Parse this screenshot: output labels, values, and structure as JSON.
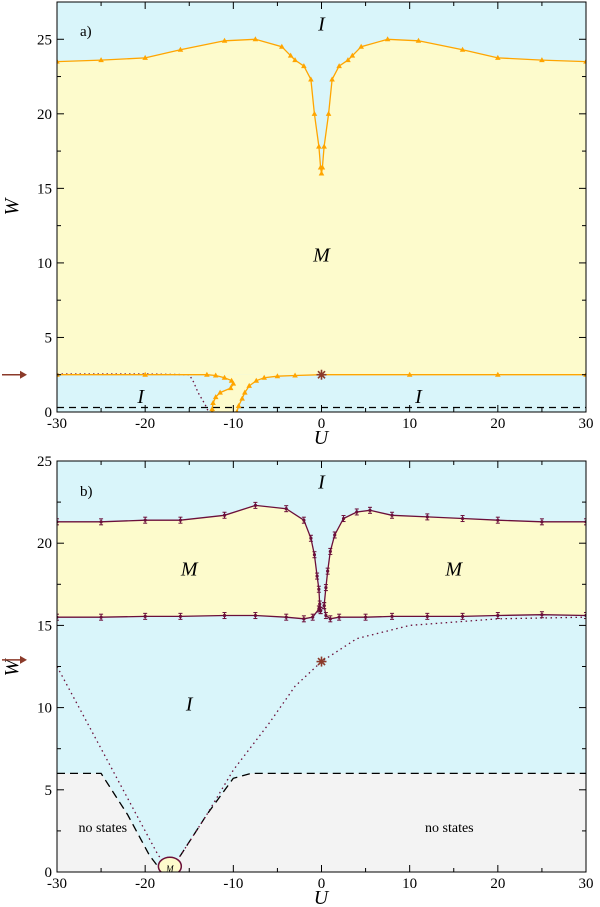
{
  "colors": {
    "insulator": "#d9f5fa",
    "metal": "#fdfbcc",
    "no_states": "#f3f3f3",
    "line_a": "#ffa500",
    "line_b": "#6b0f3a",
    "arrow": "#8b3a2a"
  },
  "chart_data": [
    {
      "type": "line",
      "panel_label": "a)",
      "xlabel": "U",
      "ylabel": "W",
      "xlim": [
        -30,
        30
      ],
      "ylim": [
        0,
        27.5
      ],
      "xticks": [
        -30,
        -20,
        -10,
        0,
        10,
        20,
        30
      ],
      "yticks": [
        0,
        5,
        10,
        15,
        20,
        25
      ],
      "arrow_w": 2.5,
      "star": {
        "x": 0,
        "y": 2.5
      },
      "regions": [
        {
          "label": "I",
          "x": 0,
          "y": 26
        },
        {
          "label": "M",
          "x": 0,
          "y": 10.5
        },
        {
          "label": "I",
          "x": -20.5,
          "y": 1.0
        },
        {
          "label": "I",
          "x": 11,
          "y": 1.0
        }
      ],
      "upper_boundary": [
        [
          -30,
          23.5
        ],
        [
          -25,
          23.6
        ],
        [
          -20,
          23.75
        ],
        [
          -16,
          24.3
        ],
        [
          -11,
          24.9
        ],
        [
          -7.5,
          25.0
        ],
        [
          -4.5,
          24.5
        ],
        [
          -3.5,
          23.9
        ],
        [
          -3,
          23.6
        ],
        [
          -2,
          23.2
        ],
        [
          -1.2,
          22.3
        ],
        [
          -0.8,
          20.0
        ],
        [
          -0.3,
          17.8
        ],
        [
          -0.1,
          16.4
        ],
        [
          0,
          16.0
        ],
        [
          0.1,
          16.4
        ],
        [
          0.3,
          17.8
        ],
        [
          0.8,
          20.0
        ],
        [
          1.2,
          22.3
        ],
        [
          2,
          23.2
        ],
        [
          3,
          23.6
        ],
        [
          3.5,
          23.9
        ],
        [
          4.5,
          24.5
        ],
        [
          7.5,
          25.0
        ],
        [
          11,
          24.9
        ],
        [
          16,
          24.3
        ],
        [
          20,
          23.75
        ],
        [
          25,
          23.6
        ],
        [
          30,
          23.5
        ]
      ],
      "lower_boundary": [
        [
          -30,
          2.5
        ],
        [
          -20,
          2.5
        ],
        [
          -13,
          2.5
        ],
        [
          -12,
          2.45
        ],
        [
          -11,
          2.3
        ],
        [
          -10.2,
          2.1
        ],
        [
          -10,
          1.9
        ],
        [
          -10.3,
          1.6
        ],
        [
          -11.5,
          1.3
        ],
        [
          -12.0,
          1.0
        ],
        [
          -12.3,
          0.6
        ],
        [
          -12.4,
          0.2
        ],
        [
          -12.4,
          0
        ]
      ],
      "lower_boundary_right": [
        [
          -9.6,
          0
        ],
        [
          -9.4,
          0.4
        ],
        [
          -9.0,
          0.9
        ],
        [
          -8.7,
          1.3
        ],
        [
          -8.2,
          1.75
        ],
        [
          -7.4,
          2.1
        ],
        [
          -6.5,
          2.3
        ],
        [
          -5,
          2.4
        ],
        [
          -3,
          2.45
        ],
        [
          0,
          2.5
        ],
        [
          10,
          2.5
        ],
        [
          20,
          2.5
        ],
        [
          30,
          2.5
        ]
      ],
      "dotted": [
        [
          -30,
          2.55
        ],
        [
          -20,
          2.55
        ],
        [
          -15,
          2.5
        ],
        [
          -14.5,
          2.0
        ],
        [
          -14,
          1.3
        ],
        [
          -13.2,
          0.5
        ],
        [
          -12.8,
          0
        ]
      ],
      "dashed": [
        [
          -30,
          0.3
        ],
        [
          30,
          0.3
        ]
      ]
    },
    {
      "type": "line",
      "panel_label": "b)",
      "xlabel": "U",
      "ylabel": "W",
      "xlim": [
        -30,
        30
      ],
      "ylim": [
        0,
        25
      ],
      "xticks": [
        -30,
        -20,
        -10,
        0,
        10,
        20,
        30
      ],
      "yticks": [
        0,
        5,
        10,
        15,
        20,
        25
      ],
      "arrow_w": 12.9,
      "star": {
        "x": 0,
        "y": 12.8
      },
      "regions": [
        {
          "label": "I",
          "x": 0,
          "y": 23.7,
          "italic": true
        },
        {
          "label": "M",
          "x": -15,
          "y": 18.4,
          "italic": true
        },
        {
          "label": "M",
          "x": 15,
          "y": 18.4,
          "italic": true
        },
        {
          "label": "I",
          "x": -15,
          "y": 10.2,
          "italic": true
        },
        {
          "label": "no states",
          "x": -24.8,
          "y": 2.8,
          "italic": false
        },
        {
          "label": "no states",
          "x": 14.5,
          "y": 2.8,
          "italic": false
        },
        {
          "label": "M",
          "x": -17.2,
          "y": 0.35,
          "italic": true,
          "small": true
        }
      ],
      "upper_left": [
        [
          -30,
          21.3
        ],
        [
          -25,
          21.3
        ],
        [
          -20,
          21.4
        ],
        [
          -16,
          21.4
        ],
        [
          -11,
          21.7
        ],
        [
          -7.5,
          22.3
        ],
        [
          -4,
          22.1
        ],
        [
          -2,
          21.4
        ],
        [
          -1.2,
          20.3
        ],
        [
          -0.8,
          19.3
        ],
        [
          -0.5,
          18.0
        ],
        [
          -0.3,
          17.2
        ],
        [
          -0.2,
          16.3
        ],
        [
          -0.1,
          15.9
        ]
      ],
      "lower_left": [
        [
          -30,
          15.5
        ],
        [
          -25,
          15.5
        ],
        [
          -20,
          15.55
        ],
        [
          -16,
          15.55
        ],
        [
          -11,
          15.6
        ],
        [
          -7.5,
          15.6
        ],
        [
          -4,
          15.5
        ],
        [
          -2,
          15.4
        ],
        [
          -1,
          15.5
        ],
        [
          -0.3,
          16.0
        ],
        [
          -0.1,
          15.9
        ]
      ],
      "upper_right": [
        [
          0.3,
          16.2
        ],
        [
          0.5,
          17.3
        ],
        [
          0.7,
          18.3
        ],
        [
          1,
          19.5
        ],
        [
          1.5,
          20.5
        ],
        [
          2.5,
          21.5
        ],
        [
          4,
          21.9
        ],
        [
          5.5,
          22.0
        ],
        [
          8,
          21.7
        ],
        [
          12,
          21.6
        ],
        [
          16,
          21.5
        ],
        [
          20,
          21.4
        ],
        [
          25,
          21.3
        ],
        [
          30,
          21.3
        ]
      ],
      "lower_right": [
        [
          0.3,
          16.2
        ],
        [
          0.5,
          15.6
        ],
        [
          1,
          15.4
        ],
        [
          2,
          15.5
        ],
        [
          5,
          15.5
        ],
        [
          8,
          15.55
        ],
        [
          12,
          15.55
        ],
        [
          16,
          15.55
        ],
        [
          20,
          15.6
        ],
        [
          25,
          15.65
        ],
        [
          30,
          15.6
        ]
      ],
      "dotted": [
        [
          -30,
          12.5
        ],
        [
          -27,
          9.5
        ],
        [
          -24,
          6.5
        ],
        [
          -21,
          3.5
        ],
        [
          -18.5,
          1.0
        ],
        [
          -17.2,
          0.3
        ],
        [
          -16,
          1.0
        ],
        [
          -13,
          3.5
        ],
        [
          -10,
          6.2
        ],
        [
          -6,
          9.0
        ],
        [
          -3,
          11.3
        ],
        [
          0,
          12.8
        ],
        [
          4,
          14.2
        ],
        [
          10,
          15.0
        ],
        [
          20,
          15.4
        ],
        [
          30,
          15.5
        ]
      ],
      "dashed": [
        [
          -30,
          6.0
        ],
        [
          -25,
          6.0
        ],
        [
          -22,
          3.5
        ],
        [
          -19.5,
          1.0
        ],
        [
          -18.5,
          0.3
        ],
        [
          -17,
          0.2
        ],
        [
          -16,
          1.0
        ],
        [
          -13,
          3.5
        ],
        [
          -10,
          5.7
        ],
        [
          -8,
          6.0
        ],
        [
          30,
          6.0
        ]
      ],
      "metal_pocket": {
        "cx": -17.2,
        "cy": 0.35,
        "rx": 1.3,
        "ry": 0.55
      }
    }
  ]
}
